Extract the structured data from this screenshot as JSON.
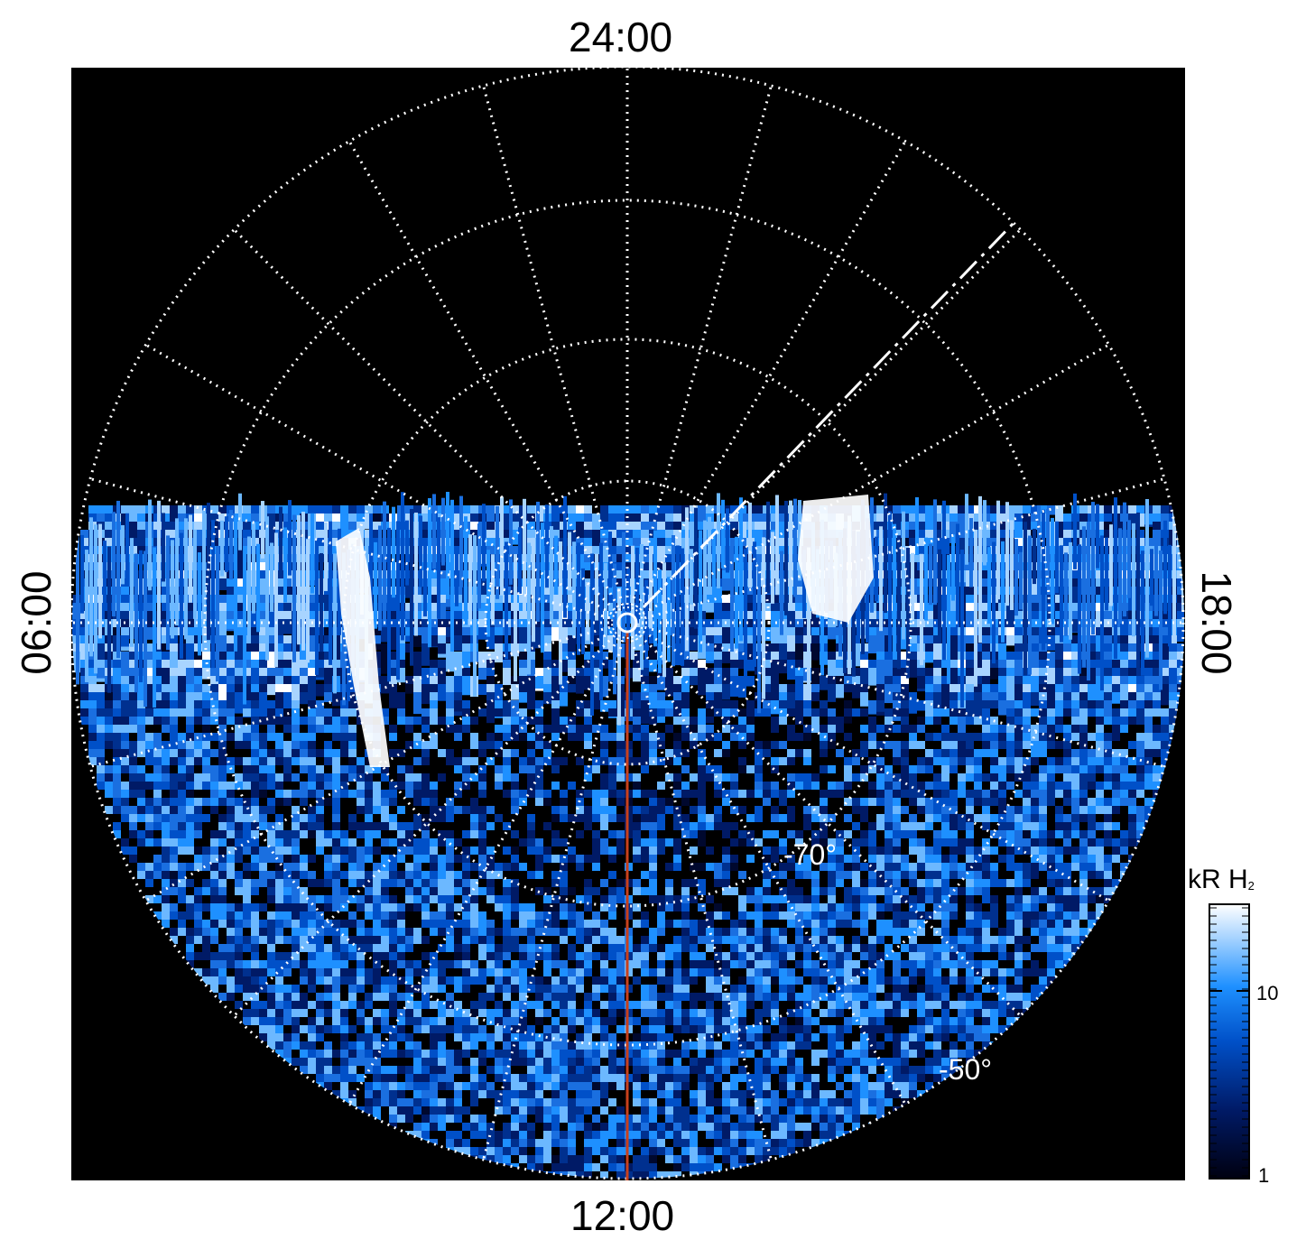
{
  "local_time_labels": {
    "top": "24:00",
    "bottom": "12:00",
    "left": "06:00",
    "right": "18:00"
  },
  "latitude_labels": {
    "inner": "-70°",
    "outer": "-50°"
  },
  "colorbar": {
    "title": "kR H",
    "title_subscript": "2",
    "ticks": [
      "10",
      "1"
    ],
    "scale": "log",
    "range_kR": [
      1,
      30
    ],
    "colors": [
      "#000010",
      "#001a66",
      "#0050c8",
      "#1e90ff",
      "#a8d4ff",
      "#ffffff"
    ]
  },
  "colors": {
    "background": "#000000",
    "grid": "#ffffff",
    "meridian_line": "#c8401c"
  }
}
